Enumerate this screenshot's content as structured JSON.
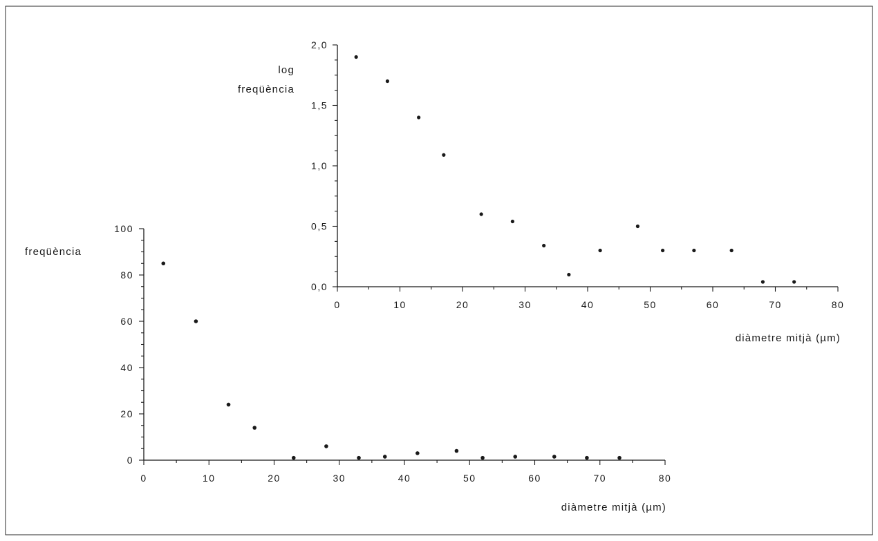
{
  "chart_data": [
    {
      "type": "scatter",
      "title": "",
      "ylabel": "freqüència",
      "xlabel": "diàmetre mitjà (µm)",
      "xlim": [
        0,
        80
      ],
      "ylim": [
        0,
        100
      ],
      "xticks": [
        0,
        10,
        20,
        30,
        40,
        50,
        60,
        70,
        80
      ],
      "yticks": [
        0,
        20,
        40,
        60,
        80,
        100
      ],
      "xtick_labels": [
        "0",
        "10",
        "20",
        "30",
        "40",
        "50",
        "60",
        "70",
        "80"
      ],
      "ytick_labels": [
        "0",
        "20",
        "40",
        "60",
        "80",
        "100"
      ],
      "grid": false,
      "series": [
        {
          "x": [
            3,
            8,
            13,
            17,
            23,
            28,
            33,
            37,
            42,
            48,
            52,
            57,
            63,
            68,
            73
          ],
          "y": [
            85,
            60,
            24,
            14,
            1,
            6,
            1,
            1.5,
            3,
            4,
            1,
            1.5,
            1.5,
            1,
            1
          ]
        }
      ]
    },
    {
      "type": "scatter",
      "title": "",
      "ylabel_lines": [
        "log",
        "freqüència"
      ],
      "xlabel": "diàmetre mitjà (µm)",
      "xlim": [
        0,
        80
      ],
      "ylim": [
        0,
        2
      ],
      "xticks": [
        0,
        10,
        20,
        30,
        40,
        50,
        60,
        70,
        80
      ],
      "yticks": [
        0,
        0.5,
        1,
        1.5,
        2
      ],
      "xtick_labels": [
        "0",
        "10",
        "20",
        "30",
        "40",
        "50",
        "60",
        "70",
        "80"
      ],
      "ytick_labels": [
        "0,0",
        "0,5",
        "1,0",
        "1,5",
        "2,0"
      ],
      "grid": false,
      "series": [
        {
          "x": [
            3,
            8,
            13,
            17,
            23,
            28,
            33,
            37,
            42,
            48,
            52,
            57,
            63,
            68,
            73
          ],
          "y": [
            1.9,
            1.7,
            1.4,
            1.09,
            0.6,
            0.54,
            0.34,
            0.1,
            0.3,
            0.5,
            0.3,
            0.3,
            0.3,
            0.04,
            0.04
          ]
        }
      ]
    }
  ]
}
